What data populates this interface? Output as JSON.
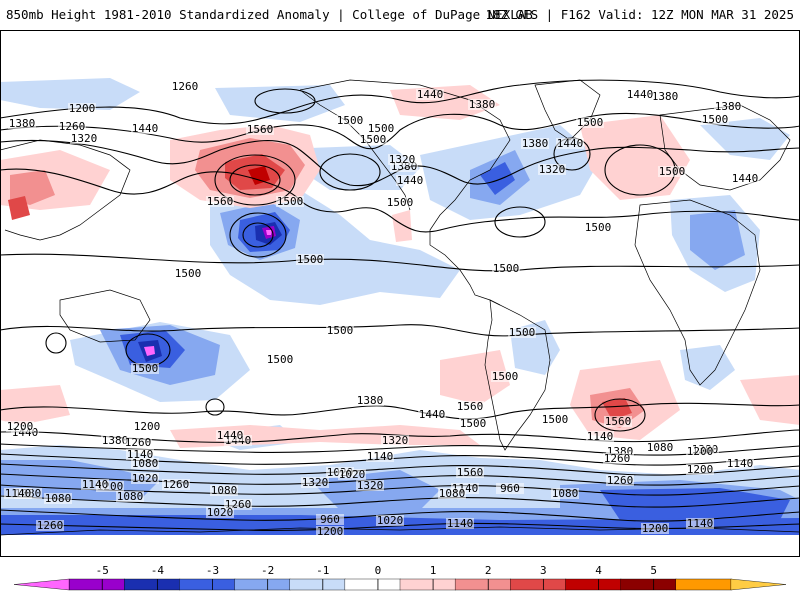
{
  "header": {
    "title_left": "850mb Height 1981-2010 Standardized Anomaly | College of DuPage NEXLAB",
    "title_right": "18Z GFS | F162 Valid: 12Z MON MAR 31 2025"
  },
  "colorbar": {
    "ticks": [
      "-5",
      "-4",
      "-3",
      "-2",
      "-1",
      "0",
      "1",
      "2",
      "3",
      "4",
      "5"
    ],
    "colors": [
      "#ff66ff",
      "#9900cc",
      "#1a2fb0",
      "#3a5fe0",
      "#86a8f0",
      "#c8dcf8",
      "#ffffff",
      "#ffd2d2",
      "#f29090",
      "#e04848",
      "#c00000",
      "#8b0000",
      "#ff9900",
      "#ffcc44"
    ]
  },
  "contour_labels": [
    "1260",
    "1200",
    "1380",
    "1260",
    "1320",
    "1440",
    "1560",
    "1500",
    "1500",
    "1500",
    "1440",
    "1380",
    "1320",
    "1560",
    "1500",
    "1380",
    "1440",
    "1500",
    "1440",
    "1380",
    "1320",
    "1380",
    "1440",
    "1380",
    "1500",
    "1440",
    "1500",
    "1500",
    "1500",
    "1500",
    "1500",
    "1500",
    "1500",
    "1500",
    "1500",
    "1500",
    "1500",
    "1560",
    "1380",
    "1440",
    "1500",
    "1560",
    "1500",
    "1380",
    "1560",
    "1440",
    "1380",
    "1320",
    "1260",
    "1200",
    "1440",
    "1140",
    "1080",
    "1380",
    "1260",
    "1200",
    "1140",
    "1080",
    "1020",
    "1200",
    "1140",
    "1020",
    "1320",
    "1260",
    "1200",
    "1140",
    "1260",
    "1080",
    "1020",
    "960",
    "1080",
    "1140",
    "1080",
    "1440",
    "1320",
    "1200",
    "1260",
    "1140",
    "1020",
    "1080",
    "1140",
    "1260",
    "960",
    "1020",
    "1140",
    "1080",
    "1200",
    "1200",
    "1080",
    "1140"
  ]
}
